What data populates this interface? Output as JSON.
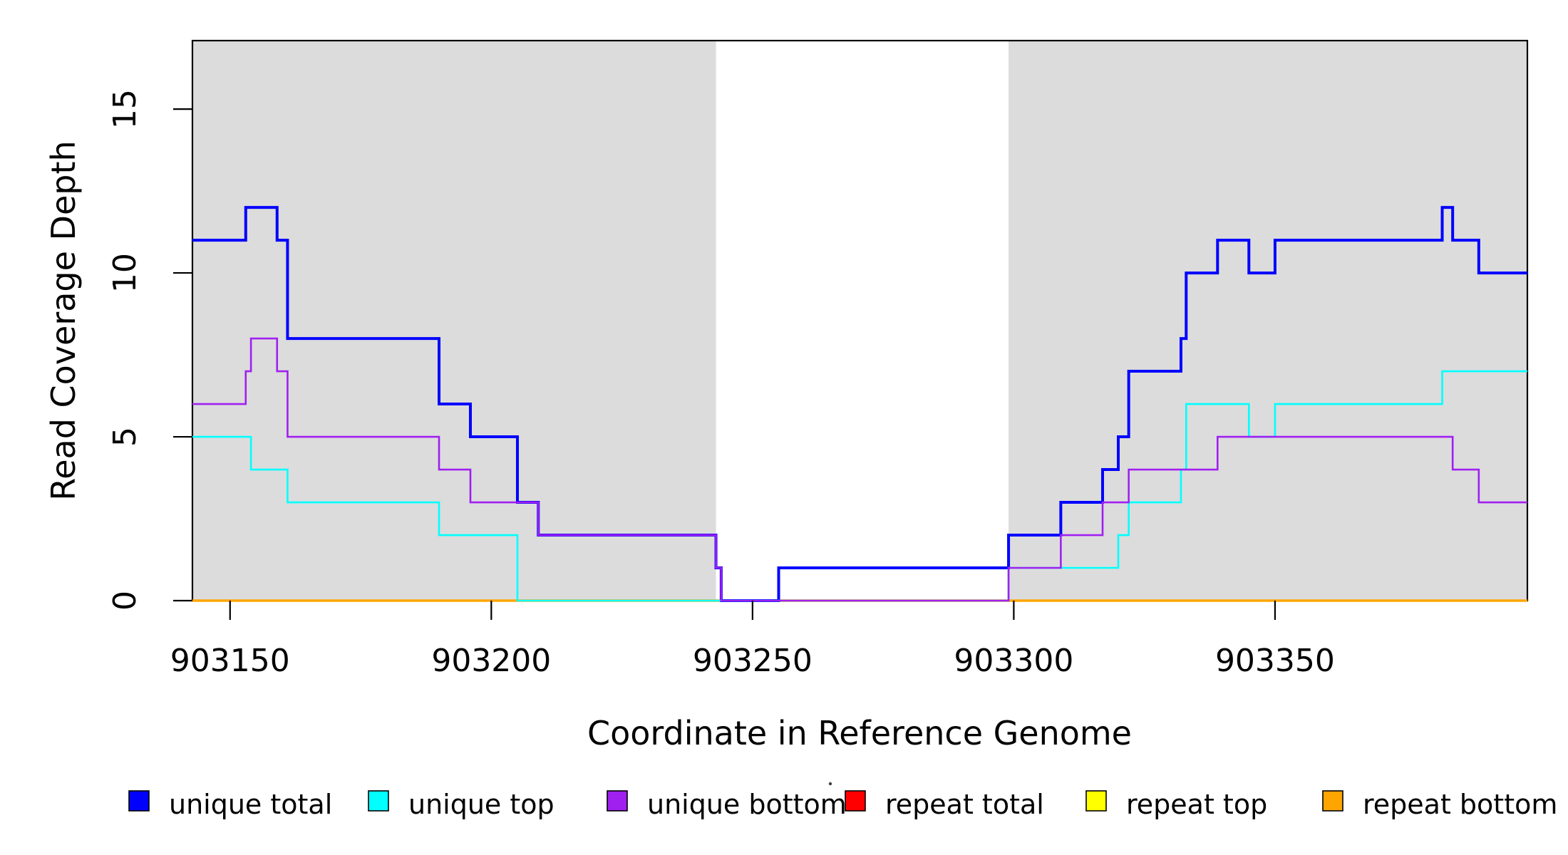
{
  "chart_data": {
    "type": "line",
    "subtype": "step-coverage-plot",
    "title": "",
    "xlabel": "Coordinate in Reference Genome",
    "ylabel": "Read Coverage Depth",
    "xlim": [
      903142.8,
      903398.3
    ],
    "ylim": [
      0,
      17.09
    ],
    "grid": false,
    "background_color": "#FFFFFF",
    "shade_color": "#DCDCDC",
    "axis_color": "#000000",
    "shaded_x_regions": [
      {
        "from": 903142.8,
        "to": 903243
      },
      {
        "from": 903299,
        "to": 903398.3
      }
    ],
    "x_ticks": [
      {
        "value": 903150,
        "label": "903150"
      },
      {
        "value": 903200,
        "label": "903200"
      },
      {
        "value": 903250,
        "label": "903250"
      },
      {
        "value": 903300,
        "label": "903300"
      },
      {
        "value": 903350,
        "label": "903350"
      }
    ],
    "y_ticks": [
      {
        "value": 0,
        "label": "0"
      },
      {
        "value": 5,
        "label": "5"
      },
      {
        "value": 10,
        "label": "10"
      },
      {
        "value": 15,
        "label": "15"
      }
    ],
    "draw_order": [
      "repeat total",
      "repeat top",
      "repeat bottom",
      "unique total",
      "unique top",
      "unique bottom"
    ],
    "series": [
      {
        "name": "unique total",
        "color": "#0000FF",
        "width": 4,
        "steps": [
          [
            903142.8,
            11
          ],
          [
            903153,
            12
          ],
          [
            903159,
            11
          ],
          [
            903161,
            8
          ],
          [
            903190,
            6
          ],
          [
            903196,
            5
          ],
          [
            903205,
            3
          ],
          [
            903209,
            2
          ],
          [
            903243,
            1
          ],
          [
            903244,
            0
          ],
          [
            903255,
            1
          ],
          [
            903299,
            2
          ],
          [
            903309,
            3
          ],
          [
            903317,
            4
          ],
          [
            903320,
            5
          ],
          [
            903322,
            7
          ],
          [
            903332,
            8
          ],
          [
            903333,
            10
          ],
          [
            903339,
            11
          ],
          [
            903345,
            10
          ],
          [
            903350,
            11
          ],
          [
            903382,
            12
          ],
          [
            903384,
            11
          ],
          [
            903389,
            10
          ]
        ]
      },
      {
        "name": "unique top",
        "color": "#00FFFF",
        "width": 2.6,
        "steps": [
          [
            903142.8,
            5
          ],
          [
            903154,
            4
          ],
          [
            903161,
            3
          ],
          [
            903190,
            2
          ],
          [
            903205,
            0
          ],
          [
            903299,
            1
          ],
          [
            903320,
            2
          ],
          [
            903322,
            3
          ],
          [
            903332,
            4
          ],
          [
            903333,
            6
          ],
          [
            903345,
            5
          ],
          [
            903350,
            6
          ],
          [
            903382,
            7
          ]
        ]
      },
      {
        "name": "unique bottom",
        "color": "#A020F0",
        "width": 2.6,
        "steps": [
          [
            903142.8,
            6
          ],
          [
            903153,
            7
          ],
          [
            903154,
            8
          ],
          [
            903159,
            7
          ],
          [
            903161,
            5
          ],
          [
            903190,
            4
          ],
          [
            903196,
            3
          ],
          [
            903209,
            2
          ],
          [
            903243,
            1
          ],
          [
            903244,
            0
          ],
          [
            903299,
            1
          ],
          [
            903309,
            2
          ],
          [
            903317,
            3
          ],
          [
            903322,
            4
          ],
          [
            903339,
            5
          ],
          [
            903384,
            4
          ],
          [
            903389,
            3
          ]
        ]
      },
      {
        "name": "repeat total",
        "color": "#FF0000",
        "width": 2.4,
        "steps": [
          [
            903142.8,
            0
          ]
        ]
      },
      {
        "name": "repeat top",
        "color": "#FFFF00",
        "width": 2.4,
        "steps": [
          [
            903142.8,
            0
          ]
        ]
      },
      {
        "name": "repeat bottom",
        "color": "#FFA500",
        "width": 3.4,
        "steps": [
          [
            903142.8,
            0
          ]
        ]
      }
    ],
    "legend": {
      "position": "bottom",
      "items": [
        {
          "label": "unique total",
          "color": "#0000FF"
        },
        {
          "label": "unique top",
          "color": "#00FFFF"
        },
        {
          "label": "unique bottom",
          "color": "#A020F0"
        },
        {
          "label": "repeat total",
          "color": "#FF0000"
        },
        {
          "label": "repeat top",
          "color": "#FFFF00"
        },
        {
          "label": "repeat bottom",
          "color": "#FFA500"
        }
      ]
    },
    "stray_mark": {
      "x": 1165,
      "y": 1100,
      "radius": 2.2,
      "color": "#404040"
    }
  }
}
